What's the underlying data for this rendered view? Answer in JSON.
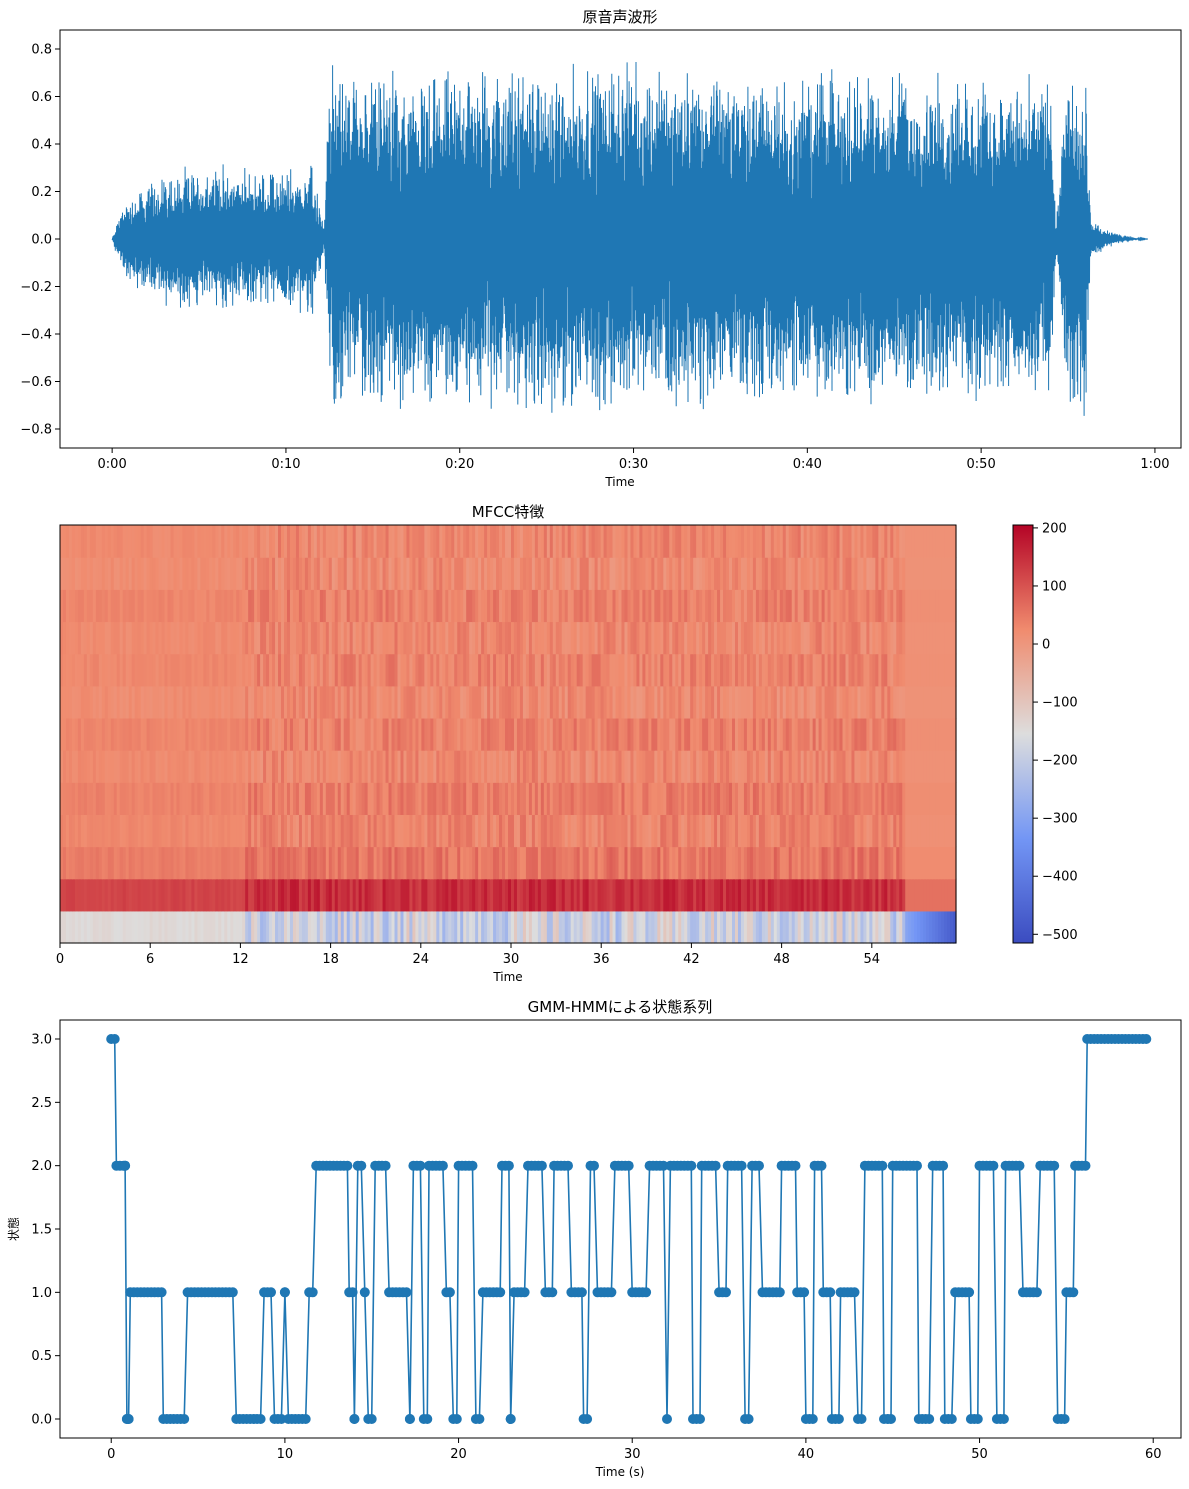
{
  "colors": {
    "line": "#1f77b4",
    "axis": "#000000"
  },
  "chart_data": [
    {
      "type": "line",
      "title": "原音声波形",
      "xlabel": "Time",
      "ylabel": "",
      "xlim": [
        -0.05,
        1.025
      ],
      "ylim": [
        -0.88,
        0.88
      ],
      "xticks": [
        0,
        10,
        20,
        30,
        40,
        50,
        60
      ],
      "xtick_labels": [
        "0:00",
        "0:10",
        "0:20",
        "0:30",
        "0:40",
        "0:50",
        "1:00"
      ],
      "yticks": [
        -0.8,
        -0.6,
        -0.4,
        -0.2,
        0.0,
        0.2,
        0.4,
        0.6,
        0.8
      ],
      "ytick_labels": [
        "−0.8",
        "−0.6",
        "−0.4",
        "−0.2",
        "0.0",
        "0.2",
        "0.4",
        "0.6",
        "0.8"
      ],
      "series": [
        {
          "name": "waveform",
          "envelope_time_s": [
            0.0,
            0.4,
            1.0,
            3.0,
            6.0,
            9.0,
            11.5,
            12.2,
            12.5,
            14.0,
            16.0,
            18.0,
            20.0,
            24.0,
            28.0,
            32.0,
            36.0,
            40.0,
            44.0,
            48.0,
            52.0,
            54.0,
            54.3,
            55.0,
            56.0,
            56.3,
            57.0,
            58.0,
            59.0,
            59.6
          ],
          "envelope_amplitude": [
            0.0,
            0.12,
            0.2,
            0.3,
            0.33,
            0.3,
            0.35,
            0.05,
            0.78,
            0.72,
            0.74,
            0.7,
            0.76,
            0.75,
            0.78,
            0.75,
            0.73,
            0.72,
            0.74,
            0.72,
            0.7,
            0.7,
            0.05,
            0.75,
            0.78,
            0.1,
            0.05,
            0.02,
            0.005,
            0.0
          ]
        }
      ]
    },
    {
      "type": "heatmap",
      "title": "MFCC特徴",
      "xlabel": "Time",
      "xlim": [
        0,
        59.6
      ],
      "xticks": [
        0,
        6,
        12,
        18,
        24,
        30,
        36,
        42,
        48,
        54
      ],
      "xtick_labels": [
        "0",
        "6",
        "12",
        "18",
        "24",
        "30",
        "36",
        "42",
        "48",
        "54"
      ],
      "n_coefficients": 13,
      "coefficient_mean_levels": [
        -180,
        150,
        55,
        35,
        45,
        30,
        40,
        25,
        35,
        30,
        40,
        25,
        30
      ],
      "colorbar": {
        "min": -515,
        "max": 205,
        "ticks": [
          200,
          100,
          0,
          -100,
          -200,
          -300,
          -400,
          -500
        ],
        "tick_labels": [
          "200",
          "100",
          "0",
          "−100",
          "−200",
          "−300",
          "−400",
          "−500"
        ],
        "colormap": "coolwarm"
      }
    },
    {
      "type": "line",
      "title": "GMM-HMMによる状態系列",
      "xlabel": "Time (s)",
      "ylabel": "状態",
      "xlim": [
        -2.95,
        61.6
      ],
      "ylim": [
        -0.15,
        3.15
      ],
      "xticks": [
        0,
        10,
        20,
        30,
        40,
        50,
        60
      ],
      "xtick_labels": [
        "0",
        "10",
        "20",
        "30",
        "40",
        "50",
        "60"
      ],
      "yticks": [
        0.0,
        0.5,
        1.0,
        1.5,
        2.0,
        2.5,
        3.0
      ],
      "ytick_labels": [
        "0.0",
        "0.5",
        "1.0",
        "1.5",
        "2.0",
        "2.5",
        "3.0"
      ],
      "series": [
        {
          "name": "state",
          "segments_start_end_state": [
            [
              0.0,
              0.3,
              3
            ],
            [
              0.3,
              0.8,
              2
            ],
            [
              0.8,
              1.0,
              2
            ],
            [
              0.9,
              1.0,
              0
            ],
            [
              1.0,
              1.1,
              0
            ],
            [
              1.1,
              3.0,
              1
            ],
            [
              3.0,
              4.4,
              0
            ],
            [
              4.4,
              7.2,
              1
            ],
            [
              7.2,
              8.4,
              0
            ],
            [
              8.4,
              8.8,
              0
            ],
            [
              8.8,
              9.4,
              1
            ],
            [
              9.4,
              10.0,
              0
            ],
            [
              10.0,
              10.2,
              1
            ],
            [
              10.2,
              11.0,
              0
            ],
            [
              11.0,
              11.4,
              0
            ],
            [
              11.4,
              11.8,
              1
            ],
            [
              11.8,
              13.7,
              2
            ],
            [
              13.7,
              14.0,
              1
            ],
            [
              14.0,
              14.2,
              0
            ],
            [
              14.2,
              14.6,
              2
            ],
            [
              14.6,
              14.8,
              1
            ],
            [
              14.8,
              15.2,
              0
            ],
            [
              15.2,
              16.0,
              2
            ],
            [
              16.0,
              16.4,
              1
            ],
            [
              16.4,
              17.2,
              1
            ],
            [
              17.2,
              17.4,
              0
            ],
            [
              17.4,
              18.0,
              2
            ],
            [
              18.0,
              18.3,
              0
            ],
            [
              18.3,
              19.3,
              2
            ],
            [
              19.3,
              19.7,
              1
            ],
            [
              19.7,
              20.0,
              0
            ],
            [
              20.0,
              21.0,
              2
            ],
            [
              21.0,
              21.4,
              0
            ],
            [
              21.4,
              22.5,
              1
            ],
            [
              22.5,
              23.0,
              2
            ],
            [
              23.0,
              23.2,
              0
            ],
            [
              23.2,
              24.0,
              1
            ],
            [
              24.0,
              25.0,
              2
            ],
            [
              25.0,
              25.5,
              1
            ],
            [
              25.5,
              26.5,
              2
            ],
            [
              26.5,
              27.2,
              1
            ],
            [
              27.2,
              27.6,
              0
            ],
            [
              27.6,
              28.0,
              2
            ],
            [
              28.0,
              29.0,
              1
            ],
            [
              29.0,
              30.0,
              2
            ],
            [
              30.0,
              31.0,
              1
            ],
            [
              31.0,
              32.0,
              2
            ],
            [
              32.0,
              32.2,
              0
            ],
            [
              32.2,
              33.5,
              2
            ],
            [
              33.5,
              34.0,
              0
            ],
            [
              34.0,
              35.0,
              2
            ],
            [
              35.0,
              35.5,
              1
            ],
            [
              35.5,
              36.5,
              2
            ],
            [
              36.5,
              36.9,
              0
            ],
            [
              36.9,
              37.5,
              2
            ],
            [
              37.5,
              38.6,
              1
            ],
            [
              38.6,
              39.5,
              2
            ],
            [
              39.5,
              40.0,
              1
            ],
            [
              40.0,
              40.5,
              0
            ],
            [
              40.5,
              41.0,
              2
            ],
            [
              41.0,
              41.5,
              1
            ],
            [
              41.5,
              42.0,
              0
            ],
            [
              42.0,
              43.0,
              1
            ],
            [
              43.0,
              43.4,
              0
            ],
            [
              43.4,
              44.5,
              2
            ],
            [
              44.5,
              45.0,
              0
            ],
            [
              45.0,
              46.5,
              2
            ],
            [
              46.5,
              47.3,
              0
            ],
            [
              47.3,
              48.0,
              2
            ],
            [
              48.0,
              48.6,
              0
            ],
            [
              48.6,
              49.5,
              1
            ],
            [
              49.5,
              50.0,
              0
            ],
            [
              50.0,
              51.0,
              2
            ],
            [
              51.0,
              51.5,
              0
            ],
            [
              51.5,
              52.5,
              2
            ],
            [
              52.5,
              53.5,
              1
            ],
            [
              53.5,
              54.5,
              2
            ],
            [
              54.5,
              55.0,
              0
            ],
            [
              55.0,
              55.5,
              1
            ],
            [
              55.5,
              56.2,
              2
            ],
            [
              56.2,
              59.6,
              3
            ]
          ]
        }
      ]
    }
  ]
}
